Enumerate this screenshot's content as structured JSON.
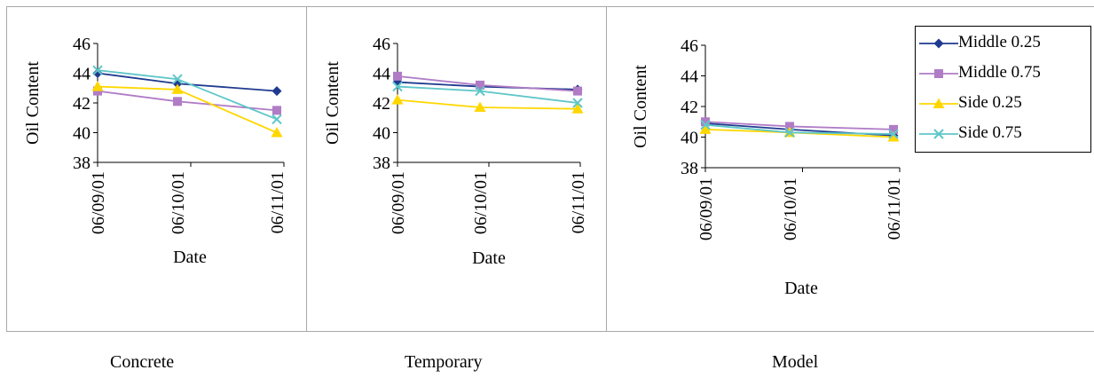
{
  "chart_data": [
    {
      "type": "line",
      "caption": "Concrete",
      "xlabel": "Date",
      "ylabel": "Oil Content",
      "categories": [
        "06/09/01",
        "06/10/01",
        "06/11/01"
      ],
      "yticks": [
        "38",
        "40",
        "42",
        "44",
        "46"
      ],
      "ylim": [
        38,
        46
      ],
      "grid": false,
      "series": [
        {
          "name": "Middle 0.25",
          "values": [
            44.0,
            43.3,
            42.8
          ],
          "color": "#1f3a8f",
          "marker": "diamond"
        },
        {
          "name": "Middle 0.75",
          "values": [
            42.8,
            42.1,
            41.5
          ],
          "color": "#b07cc6",
          "marker": "square"
        },
        {
          "name": "Side 0.25",
          "values": [
            43.1,
            42.9,
            40.0
          ],
          "color": "#ffd700",
          "marker": "triangle"
        },
        {
          "name": "Side 0.75",
          "values": [
            44.2,
            43.6,
            40.9
          ],
          "color": "#5ec6c8",
          "marker": "x"
        }
      ]
    },
    {
      "type": "line",
      "caption": "Temporary",
      "xlabel": "Date",
      "ylabel": "Oil Content",
      "categories": [
        "06/09/01",
        "06/10/01",
        "06/11/01"
      ],
      "yticks": [
        "38",
        "40",
        "42",
        "44",
        "46"
      ],
      "ylim": [
        38,
        46
      ],
      "grid": false,
      "series": [
        {
          "name": "Middle 0.25",
          "values": [
            43.4,
            43.1,
            42.9
          ],
          "color": "#1f3a8f",
          "marker": "diamond"
        },
        {
          "name": "Middle 0.75",
          "values": [
            43.8,
            43.2,
            42.8
          ],
          "color": "#b07cc6",
          "marker": "square"
        },
        {
          "name": "Side 0.25",
          "values": [
            42.2,
            41.7,
            41.6
          ],
          "color": "#ffd700",
          "marker": "triangle"
        },
        {
          "name": "Side 0.75",
          "values": [
            43.1,
            42.8,
            42.0
          ],
          "color": "#5ec6c8",
          "marker": "x"
        }
      ]
    },
    {
      "type": "line",
      "caption": "Model",
      "xlabel": "Date",
      "ylabel": "Oil Content",
      "categories": [
        "06/09/01",
        "06/10/01",
        "06/11/01"
      ],
      "yticks": [
        "38",
        "40",
        "42",
        "44",
        "46"
      ],
      "ylim": [
        38,
        46
      ],
      "grid": false,
      "legend": "right",
      "series": [
        {
          "name": "Middle 0.25",
          "values": [
            40.9,
            40.5,
            40.1
          ],
          "color": "#1f3a8f",
          "marker": "diamond"
        },
        {
          "name": "Middle 0.75",
          "values": [
            41.0,
            40.7,
            40.5
          ],
          "color": "#b07cc6",
          "marker": "square"
        },
        {
          "name": "Side 0.25",
          "values": [
            40.5,
            40.3,
            40.0
          ],
          "color": "#ffd700",
          "marker": "triangle"
        },
        {
          "name": "Side 0.75",
          "values": [
            40.8,
            40.3,
            40.2
          ],
          "color": "#5ec6c8",
          "marker": "x"
        }
      ]
    }
  ],
  "legend_items": [
    {
      "label": "Middle 0.25",
      "color": "#1f3a8f",
      "marker": "diamond"
    },
    {
      "label": "Middle 0.75",
      "color": "#b07cc6",
      "marker": "square"
    },
    {
      "label": "Side 0.25",
      "color": "#ffd700",
      "marker": "triangle"
    },
    {
      "label": "Side 0.75",
      "color": "#5ec6c8",
      "marker": "x"
    }
  ]
}
